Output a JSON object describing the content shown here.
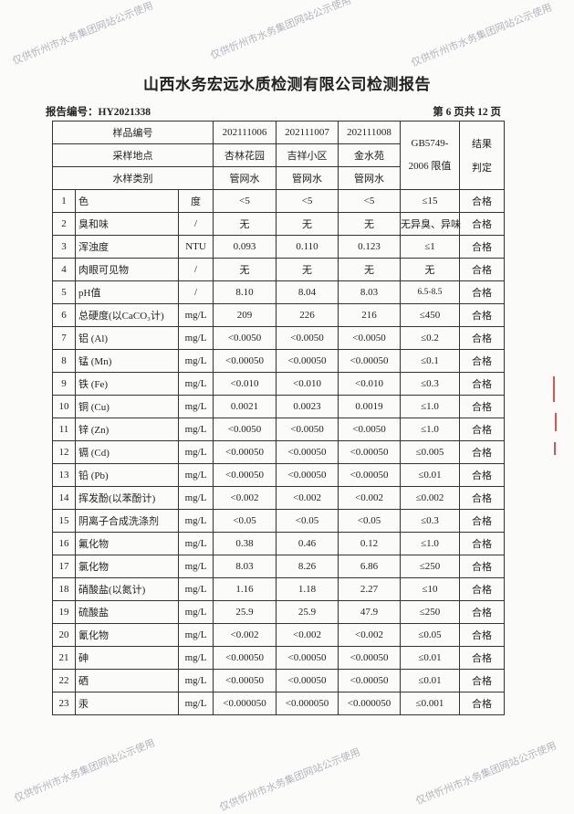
{
  "title": "山西水务宏远水质检测有限公司检测报告",
  "report_no": "报告编号：HY2021338",
  "page_no": "第 6 页共 12 页",
  "watermark": "仅供忻州市水务集团网站公示使用",
  "header": {
    "sample_id_label": "样品编号",
    "site_label": "采样地点",
    "type_label": "水样类别",
    "standard_label_1": "GB5749-",
    "standard_label_2": "2006 限值",
    "result_label_1": "结果",
    "result_label_2": "判定",
    "samples": [
      {
        "id": "202111006",
        "site": "杏林花园",
        "type": "管网水"
      },
      {
        "id": "202111007",
        "site": "吉祥小区",
        "type": "管网水"
      },
      {
        "id": "202111008",
        "site": "金水苑",
        "type": "管网水"
      }
    ]
  },
  "rows": [
    {
      "no": "1",
      "name": "色",
      "unit": "度",
      "v1": "<5",
      "v2": "<5",
      "v3": "<5",
      "limit": "≤15",
      "result": "合格"
    },
    {
      "no": "2",
      "name": "臭和味",
      "unit": "/",
      "v1": "无",
      "v2": "无",
      "v3": "无",
      "limit": "无异臭、异味",
      "result": "合格"
    },
    {
      "no": "3",
      "name": "浑浊度",
      "unit": "NTU",
      "v1": "0.093",
      "v2": "0.110",
      "v3": "0.123",
      "limit": "≤1",
      "result": "合格"
    },
    {
      "no": "4",
      "name": "肉眼可见物",
      "unit": "/",
      "v1": "无",
      "v2": "无",
      "v3": "无",
      "limit": "无",
      "result": "合格"
    },
    {
      "no": "5",
      "name": "pH值",
      "unit": "/",
      "v1": "8.10",
      "v2": "8.04",
      "v3": "8.03",
      "limit": "6.5-8.5",
      "result": "合格"
    },
    {
      "no": "6",
      "name": "总硬度(以CaCO₃计)",
      "unit": "mg/L",
      "v1": "209",
      "v2": "226",
      "v3": "216",
      "limit": "≤450",
      "result": "合格"
    },
    {
      "no": "7",
      "name": "铝 (Al)",
      "unit": "mg/L",
      "v1": "<0.0050",
      "v2": "<0.0050",
      "v3": "<0.0050",
      "limit": "≤0.2",
      "result": "合格"
    },
    {
      "no": "8",
      "name": "锰 (Mn)",
      "unit": "mg/L",
      "v1": "<0.00050",
      "v2": "<0.00050",
      "v3": "<0.00050",
      "limit": "≤0.1",
      "result": "合格"
    },
    {
      "no": "9",
      "name": "铁 (Fe)",
      "unit": "mg/L",
      "v1": "<0.010",
      "v2": "<0.010",
      "v3": "<0.010",
      "limit": "≤0.3",
      "result": "合格"
    },
    {
      "no": "10",
      "name": "铜 (Cu)",
      "unit": "mg/L",
      "v1": "0.0021",
      "v2": "0.0023",
      "v3": "0.0019",
      "limit": "≤1.0",
      "result": "合格"
    },
    {
      "no": "11",
      "name": "锌 (Zn)",
      "unit": "mg/L",
      "v1": "<0.0050",
      "v2": "<0.0050",
      "v3": "<0.0050",
      "limit": "≤1.0",
      "result": "合格"
    },
    {
      "no": "12",
      "name": "镉 (Cd)",
      "unit": "mg/L",
      "v1": "<0.00050",
      "v2": "<0.00050",
      "v3": "<0.00050",
      "limit": "≤0.005",
      "result": "合格"
    },
    {
      "no": "13",
      "name": "铅 (Pb)",
      "unit": "mg/L",
      "v1": "<0.00050",
      "v2": "<0.00050",
      "v3": "<0.00050",
      "limit": "≤0.01",
      "result": "合格"
    },
    {
      "no": "14",
      "name": "挥发酚(以苯酚计)",
      "unit": "mg/L",
      "v1": "<0.002",
      "v2": "<0.002",
      "v3": "<0.002",
      "limit": "≤0.002",
      "result": "合格"
    },
    {
      "no": "15",
      "name": "阴离子合成洗涤剂",
      "unit": "mg/L",
      "v1": "<0.05",
      "v2": "<0.05",
      "v3": "<0.05",
      "limit": "≤0.3",
      "result": "合格"
    },
    {
      "no": "16",
      "name": "氟化物",
      "unit": "mg/L",
      "v1": "0.38",
      "v2": "0.46",
      "v3": "0.12",
      "limit": "≤1.0",
      "result": "合格"
    },
    {
      "no": "17",
      "name": "氯化物",
      "unit": "mg/L",
      "v1": "8.03",
      "v2": "8.26",
      "v3": "6.86",
      "limit": "≤250",
      "result": "合格"
    },
    {
      "no": "18",
      "name": "硝酸盐(以氮计)",
      "unit": "mg/L",
      "v1": "1.16",
      "v2": "1.18",
      "v3": "2.27",
      "limit": "≤10",
      "result": "合格"
    },
    {
      "no": "19",
      "name": "硫酸盐",
      "unit": "mg/L",
      "v1": "25.9",
      "v2": "25.9",
      "v3": "47.9",
      "limit": "≤250",
      "result": "合格"
    },
    {
      "no": "20",
      "name": "氰化物",
      "unit": "mg/L",
      "v1": "<0.002",
      "v2": "<0.002",
      "v3": "<0.002",
      "limit": "≤0.05",
      "result": "合格"
    },
    {
      "no": "21",
      "name": "砷",
      "unit": "mg/L",
      "v1": "<0.00050",
      "v2": "<0.00050",
      "v3": "<0.00050",
      "limit": "≤0.01",
      "result": "合格"
    },
    {
      "no": "22",
      "name": "硒",
      "unit": "mg/L",
      "v1": "<0.00050",
      "v2": "<0.00050",
      "v3": "<0.00050",
      "limit": "≤0.01",
      "result": "合格"
    },
    {
      "no": "23",
      "name": "汞",
      "unit": "mg/L",
      "v1": "<0.000050",
      "v2": "<0.000050",
      "v3": "<0.000050",
      "limit": "≤0.001",
      "result": "合格"
    }
  ]
}
